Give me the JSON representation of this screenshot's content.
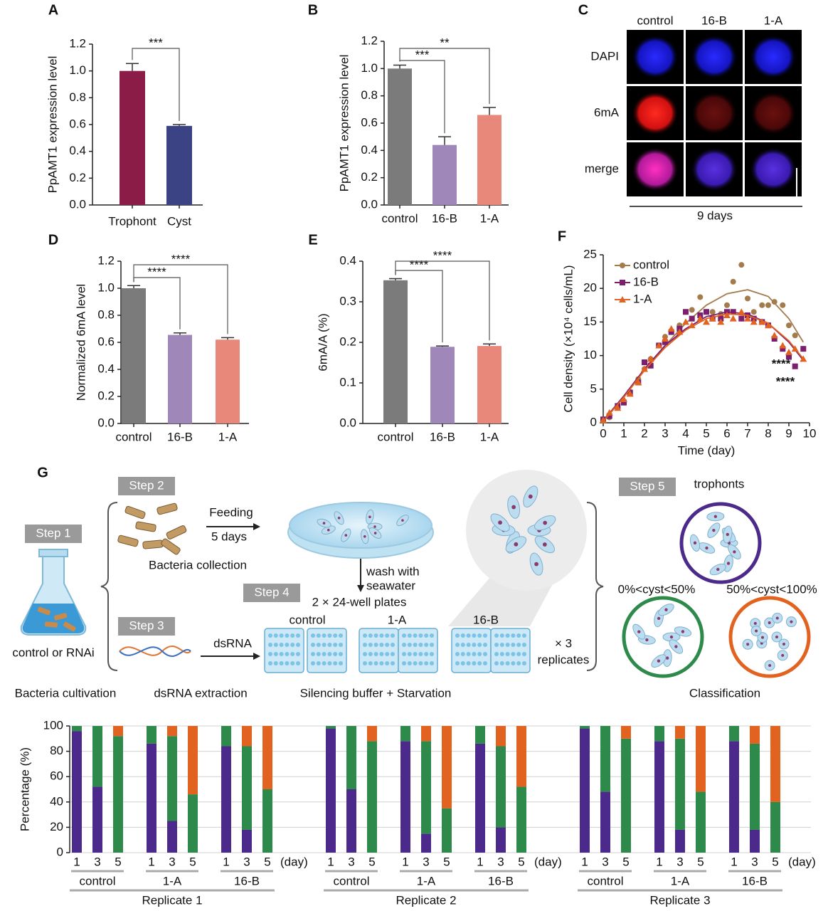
{
  "panel_labels": [
    "A",
    "B",
    "C",
    "D",
    "E",
    "F",
    "G"
  ],
  "chart_data": [
    {
      "type": "bar",
      "ylabel": "PpAMT1 expression level",
      "categories": [
        "Trophont",
        "Cyst"
      ],
      "values": [
        1.0,
        0.59
      ],
      "errors": [
        0.055,
        0.01
      ],
      "colors": [
        "#8b1c47",
        "#3c4384"
      ],
      "ylim": [
        0,
        1.2
      ],
      "yticks": [
        {
          "value": 0,
          "label": "0.0"
        },
        0.2,
        0.4,
        0.6,
        0.8,
        {
          "value": 1,
          "label": "1.0"
        },
        1.2
      ],
      "significance": [
        {
          "between": [
            "Trophont",
            "Cyst"
          ],
          "label": "***"
        }
      ]
    },
    {
      "type": "bar",
      "ylabel": "PpAMT1 expression level",
      "categories": [
        "control",
        "16-B",
        "1-A"
      ],
      "values": [
        1.0,
        0.44,
        0.66
      ],
      "errors": [
        0.025,
        0.06,
        0.055
      ],
      "colors": [
        "#7b7b7b",
        "#9f88b9",
        "#e8887a"
      ],
      "ylim": [
        0,
        1.2
      ],
      "yticks": [
        {
          "value": 0,
          "label": "0.0"
        },
        0.2,
        0.4,
        0.6,
        0.8,
        {
          "value": 1,
          "label": "1.0"
        },
        1.2
      ],
      "significance": [
        {
          "between": [
            "control",
            "16-B"
          ],
          "label": "***"
        },
        {
          "between": [
            "control",
            "1-A"
          ],
          "label": "**"
        }
      ]
    },
    {
      "type": "bar",
      "ylabel": "Normalized 6mA level",
      "categories": [
        "control",
        "16-B",
        "1-A"
      ],
      "values": [
        1.0,
        0.655,
        0.62
      ],
      "errors": [
        0.02,
        0.015,
        0.015
      ],
      "colors": [
        "#7b7b7b",
        "#9f88b9",
        "#e8887a"
      ],
      "ylim": [
        0,
        1.2
      ],
      "yticks": [
        {
          "value": 0,
          "label": "0.0"
        },
        0.2,
        0.4,
        0.6,
        0.8,
        {
          "value": 1,
          "label": "1.0"
        },
        1.2
      ],
      "significance": [
        {
          "between": [
            "control",
            "16-B"
          ],
          "label": "****"
        },
        {
          "between": [
            "control",
            "1-A"
          ],
          "label": "****"
        }
      ]
    },
    {
      "type": "bar",
      "ylabel": "6mA/A (%)",
      "categories": [
        "control",
        "16-B",
        "1-A"
      ],
      "values": [
        0.353,
        0.189,
        0.191
      ],
      "errors": [
        0.004,
        0.002,
        0.005
      ],
      "colors": [
        "#7b7b7b",
        "#9f88b9",
        "#e8887a"
      ],
      "ylim": [
        0,
        0.4
      ],
      "yticks": [
        {
          "value": 0,
          "label": "0.0"
        },
        0.1,
        0.2,
        0.3,
        0.4
      ],
      "significance": [
        {
          "between": [
            "control",
            "16-B"
          ],
          "label": "****"
        },
        {
          "between": [
            "control",
            "1-A"
          ],
          "label": "****"
        }
      ]
    },
    {
      "type": "scatter",
      "xlabel": "Time (day)",
      "ylabel": "Cell density (×10⁴ cells/mL)",
      "xlim": [
        0,
        10
      ],
      "ylim": [
        0,
        25
      ],
      "xticks": [
        0,
        1,
        2,
        3,
        4,
        5,
        6,
        7,
        8,
        9,
        10
      ],
      "yticks": [
        0,
        5,
        10,
        15,
        20,
        25
      ],
      "legend": "upper left",
      "x": [
        0,
        0.3,
        0.7,
        1,
        1.3,
        1.7,
        2,
        2.3,
        2.7,
        3,
        3.3,
        3.7,
        4,
        4.3,
        4.7,
        5,
        5.3,
        5.7,
        6,
        6.3,
        6.7,
        7,
        7.3,
        7.7,
        8,
        8.3,
        8.7,
        9,
        9.3,
        9.7
      ],
      "fit_x": [
        0,
        1,
        2,
        3,
        4,
        5,
        6,
        7,
        8,
        9,
        9.7
      ],
      "series": [
        {
          "name": "control",
          "color": "#a37b4c",
          "marker": "circle",
          "values": [
            0.3,
            0.8,
            2.2,
            3.2,
            4.6,
            6.5,
            8,
            9.5,
            11.5,
            12.8,
            13.5,
            14.5,
            16.5,
            16.8,
            18.7,
            16.5,
            16.5,
            16.2,
            17.5,
            21,
            23.5,
            18.5,
            16.5,
            17.5,
            17.5,
            18,
            17.5,
            14.5,
            13,
            11
          ],
          "fit_values": [
            0.3,
            3.8,
            7.8,
            11.5,
            14.8,
            17.5,
            19.2,
            19.8,
            18.8,
            15.5,
            12
          ]
        },
        {
          "name": "16-B",
          "color": "#7b1f6e",
          "marker": "square",
          "values": [
            0.5,
            1,
            2.5,
            3,
            4.5,
            6,
            9,
            8.5,
            11.5,
            12,
            13.5,
            14,
            16.5,
            15.5,
            16,
            16.5,
            15.5,
            15.5,
            16.5,
            16.5,
            15.5,
            16,
            15.5,
            15,
            14.5,
            12.5,
            11,
            9.8,
            8.4,
            11
          ],
          "fit_values": [
            0.3,
            4,
            8,
            11.5,
            14,
            15.8,
            16.5,
            16.2,
            14.8,
            12,
            9.3
          ]
        },
        {
          "name": "1-A",
          "color": "#e2621f",
          "marker": "triangle",
          "values": [
            0.4,
            1.5,
            2.2,
            3.5,
            4.3,
            6,
            8,
            9.5,
            11.5,
            12.5,
            14,
            13.5,
            15,
            14.5,
            15.5,
            15,
            15.5,
            15,
            16,
            15.5,
            16.5,
            15.5,
            15,
            15,
            14.5,
            13,
            11.5,
            10.5,
            11,
            9.5
          ],
          "fit_values": [
            0.2,
            3.8,
            7.8,
            11.2,
            13.8,
            15.5,
            16.2,
            16,
            14.8,
            12.2,
            9.5
          ]
        }
      ],
      "annotations": [
        {
          "text": "****",
          "color": "#e2621f"
        },
        {
          "text": "****",
          "color": "#7b1f6e"
        }
      ]
    },
    {
      "type": "stacked_bar",
      "ylabel": "Percentage (%)",
      "ylim": [
        0,
        100
      ],
      "yticks": [
        0,
        20,
        40,
        60,
        80,
        100
      ],
      "grid": true,
      "x_unit": "(day)",
      "categories": [
        "1",
        "3",
        "5",
        "1",
        "3",
        "5",
        "1",
        "3",
        "5",
        "1",
        "3",
        "5",
        "1",
        "3",
        "5",
        "1",
        "3",
        "5",
        "1",
        "3",
        "5",
        "1",
        "3",
        "5",
        "1",
        "3",
        "5"
      ],
      "groups": [
        "control",
        "1-A",
        "16-B",
        "control",
        "1-A",
        "16-B",
        "control",
        "1-A",
        "16-B"
      ],
      "replicates": [
        "Replicate 1",
        "Replicate 2",
        "Replicate 3"
      ],
      "series": [
        {
          "name": "trophonts",
          "color": "#4b2a8c",
          "values": [
            96,
            52,
            0,
            86,
            25,
            0,
            84,
            18,
            0,
            98,
            50,
            0,
            88,
            15,
            0,
            86,
            20,
            0,
            98,
            48,
            0,
            88,
            18,
            0,
            88,
            18,
            0
          ]
        },
        {
          "name": "0%<cyst<50%",
          "color": "#2e8a4b",
          "values": [
            4,
            48,
            92,
            14,
            67,
            46,
            16,
            66,
            50,
            2,
            50,
            88,
            12,
            73,
            35,
            14,
            64,
            52,
            2,
            52,
            90,
            12,
            72,
            48,
            12,
            68,
            40
          ]
        },
        {
          "name": "50%<cyst<100%",
          "color": "#e2621f",
          "values": [
            0,
            0,
            8,
            0,
            8,
            54,
            0,
            16,
            50,
            0,
            0,
            12,
            0,
            12,
            65,
            0,
            16,
            48,
            0,
            0,
            10,
            0,
            10,
            52,
            0,
            14,
            60
          ]
        }
      ]
    }
  ],
  "microscopy": {
    "columns": [
      "control",
      "16-B",
      "1-A"
    ],
    "column_colors": [
      "#111111",
      "#7a3fa0",
      "#e8887a"
    ],
    "rows": [
      "DAPI",
      "6mA",
      "merge"
    ],
    "row_colors": [
      "#1a1aff",
      "#e82020",
      "#d020a0"
    ],
    "caption": "9 days"
  },
  "schematic": {
    "steps": [
      "Step 1",
      "Step 2",
      "Step 3",
      "Step 4",
      "Step 5"
    ],
    "feeding": "Feeding",
    "feeding_time": "5 days",
    "bacteria_collection": "Bacteria collection",
    "wash": [
      "wash with",
      "seawater"
    ],
    "plates": "2 × 24-well plates",
    "plate_groups": [
      "control",
      "1-A",
      "16-B"
    ],
    "replicates": [
      "× 3",
      "replicates"
    ],
    "dsrna": "dsRNA",
    "flask": "control or RNAi",
    "stages": [
      "Bacteria cultivation",
      "dsRNA extraction",
      "Silencing buffer + Starvation",
      "Classification"
    ]
  }
}
